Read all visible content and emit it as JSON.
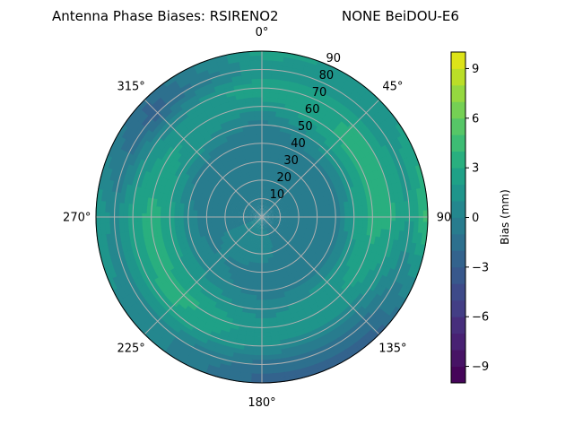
{
  "chart_data": {
    "type": "heatmap",
    "subtype": "polar-filled-contour",
    "title_left": "Antenna Phase Biases: RSIRENO2",
    "title_right": "NONE BeiDOU-E6",
    "angle_tick_labels": [
      "0°",
      "45°",
      "90°",
      "135°",
      "180°",
      "225°",
      "270°",
      "315°"
    ],
    "angle_ticks_deg": [
      0,
      45,
      90,
      135,
      180,
      225,
      270,
      315
    ],
    "angle_direction": "clockwise",
    "angle_zero": "north",
    "radial_ticks": [
      10,
      20,
      30,
      40,
      50,
      60,
      70,
      80,
      90
    ],
    "radial_tick_labels": [
      "10",
      "20",
      "30",
      "40",
      "50",
      "60",
      "70",
      "80",
      "90"
    ],
    "rlim": [
      0,
      90
    ],
    "grid": true,
    "colorbar": {
      "label": "Bias (mm)",
      "range": [
        -10,
        10
      ],
      "ticks": [
        -9,
        -6,
        -3,
        0,
        3,
        6,
        9
      ],
      "tick_labels": [
        "−9",
        "−6",
        "−3",
        "0",
        "3",
        "6",
        "9"
      ],
      "levels": 20,
      "colormap": "viridis",
      "colors": [
        "#450559",
        "#471365",
        "#482173",
        "#472e7c",
        "#433e85",
        "#3e4a89",
        "#38588c",
        "#33638d",
        "#2d708e",
        "#287c8e",
        "#24878e",
        "#1f958b",
        "#1fa187",
        "#29af7f",
        "#3dbc74",
        "#56c667",
        "#75d054",
        "#95d840",
        "#bade28",
        "#dde318"
      ]
    },
    "azimuth_deg": [
      0,
      45,
      90,
      135,
      180,
      225,
      270,
      315
    ],
    "radius": [
      0,
      10,
      20,
      30,
      40,
      50,
      60,
      70,
      80,
      90
    ],
    "values_mm": [
      [
        -0.5,
        -0.5,
        -0.5,
        -0.8,
        -0.8,
        -0.5,
        1.5,
        2.8,
        1.5,
        2.5
      ],
      [
        -0.5,
        -0.5,
        -0.5,
        -0.8,
        -0.5,
        1.5,
        3.2,
        3.0,
        1.0,
        1.5
      ],
      [
        -0.5,
        -0.5,
        -0.8,
        -0.8,
        -0.5,
        2.0,
        3.5,
        3.2,
        2.0,
        4.5
      ],
      [
        -0.5,
        -0.5,
        -0.8,
        -0.8,
        -0.5,
        1.5,
        2.0,
        0.5,
        -1.5,
        -2.5
      ],
      [
        -0.5,
        0.5,
        0.5,
        -0.5,
        -0.5,
        0.5,
        1.5,
        1.0,
        -1.5,
        -2.5
      ],
      [
        0.5,
        0.5,
        0.5,
        0.0,
        0.5,
        2.0,
        3.5,
        2.8,
        0.5,
        0.5
      ],
      [
        -0.5,
        -0.5,
        -0.5,
        -0.5,
        0.5,
        2.5,
        3.5,
        2.5,
        0.5,
        2.0
      ],
      [
        -0.5,
        -0.5,
        -0.5,
        -0.8,
        -0.8,
        1.5,
        2.0,
        0.5,
        -2.5,
        -2.0
      ]
    ]
  }
}
